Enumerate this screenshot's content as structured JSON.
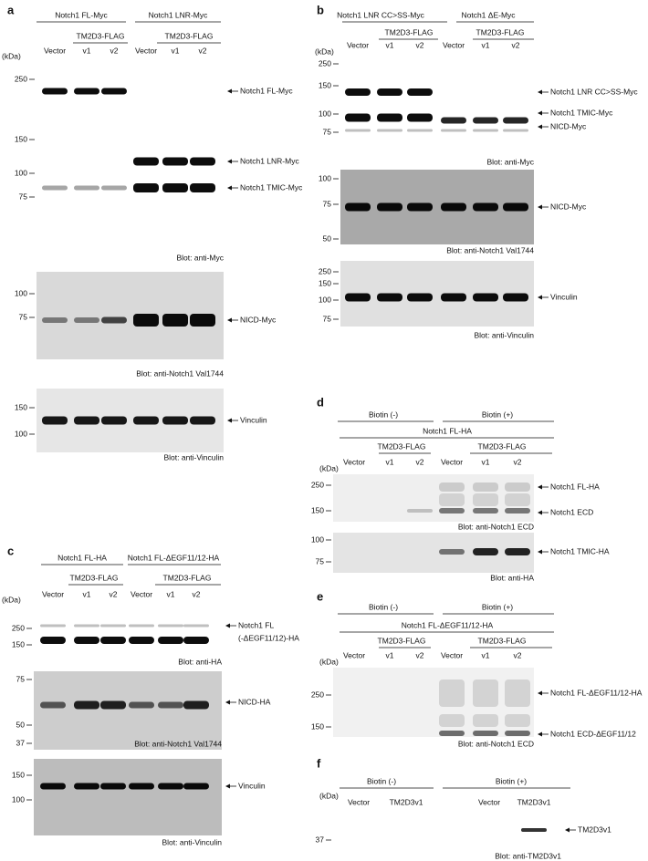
{
  "panels": [
    {
      "letter": "a",
      "headers": [
        [
          "Notch1 FL-Myc",
          "Notch1 LNR-Myc"
        ],
        [
          "TM2D3-FLAG",
          "TM2D3-FLAG"
        ]
      ],
      "lanes": [
        "Vector",
        "v1",
        "v2",
        "Vector",
        "v1",
        "v2"
      ],
      "kda": "(kDa)",
      "blots": [
        {
          "markers": [
            250,
            150,
            100,
            75
          ],
          "bands": [
            "Notch1 FL-Myc",
            "Notch1 LNR-Myc",
            "Notch1 TMIC-Myc"
          ],
          "caption": "Blot: anti-Myc"
        },
        {
          "markers": [
            100,
            75
          ],
          "bands": [
            "NICD-Myc"
          ],
          "caption": "Blot: anti-Notch1 Val1744"
        },
        {
          "markers": [
            150,
            100
          ],
          "bands": [
            "Vinculin"
          ],
          "caption": "Blot: anti-Vinculin"
        }
      ]
    },
    {
      "letter": "b",
      "headers": [
        [
          "Notch1 LNR CC>SS-Myc",
          "Notch1 ΔE-Myc"
        ],
        [
          "TM2D3-FLAG",
          "TM2D3-FLAG"
        ]
      ],
      "lanes": [
        "Vector",
        "v1",
        "v2",
        "Vector",
        "v1",
        "v2"
      ],
      "kda": "(kDa)",
      "blots": [
        {
          "markers": [
            250,
            150,
            100,
            75
          ],
          "bands": [
            "Notch1 LNR CC>SS-Myc",
            "Notch1 TMIC-Myc",
            "NICD-Myc"
          ],
          "caption": "Blot: anti-Myc"
        },
        {
          "markers": [
            100,
            75,
            50
          ],
          "bands": [
            "NICD-Myc"
          ],
          "caption": "Blot: anti-Notch1 Val1744"
        },
        {
          "markers": [
            250,
            150,
            100,
            75
          ],
          "bands": [
            "Vinculin"
          ],
          "caption": "Blot: anti-Vinculin"
        }
      ]
    },
    {
      "letter": "c",
      "headers": [
        [
          "Notch1 FL-HA",
          "Notch1 FL-ΔEGF11/12-HA"
        ],
        [
          "TM2D3-FLAG",
          "TM2D3-FLAG"
        ]
      ],
      "lanes": [
        "Vector",
        "v1",
        "v2",
        "Vector",
        "v1",
        "v2"
      ],
      "kda": "(kDa)",
      "blots": [
        {
          "markers": [
            250,
            150
          ],
          "bands": [
            "Notch1 FL",
            "(-ΔEGF11/12)-HA"
          ],
          "caption": "Blot: anti-HA"
        },
        {
          "markers": [
            75,
            50,
            37
          ],
          "bands": [
            "NICD-HA"
          ],
          "caption": "Blot: anti-Notch1 Val1744"
        },
        {
          "markers": [
            150,
            100
          ],
          "bands": [
            "Vinculin"
          ],
          "caption": "Blot: anti-Vinculin"
        }
      ]
    },
    {
      "letter": "d",
      "headers": [
        [
          "Biotin (-)",
          "Biotin (+)"
        ],
        [
          "Notch1 FL-HA"
        ],
        [
          "TM2D3-FLAG",
          "TM2D3-FLAG"
        ]
      ],
      "lanes": [
        "Vector",
        "v1",
        "v2",
        "Vector",
        "v1",
        "v2"
      ],
      "kda": "(kDa)",
      "blots": [
        {
          "markers": [
            250,
            150
          ],
          "bands": [
            "Notch1 FL-HA",
            "Notch1 ECD"
          ],
          "caption": "Blot: anti-Notch1 ECD"
        },
        {
          "markers": [
            100,
            75
          ],
          "bands": [
            "Notch1 TMIC-HA"
          ],
          "caption": "Blot: anti-HA"
        }
      ]
    },
    {
      "letter": "e",
      "headers": [
        [
          "Biotin (-)",
          "Biotin (+)"
        ],
        [
          "Notch1 FL-ΔEGF11/12-HA"
        ],
        [
          "TM2D3-FLAG",
          "TM2D3-FLAG"
        ]
      ],
      "lanes": [
        "Vector",
        "v1",
        "v2",
        "Vector",
        "v1",
        "v2"
      ],
      "kda": "(kDa)",
      "blots": [
        {
          "markers": [
            250,
            150
          ],
          "bands": [
            "Notch1 FL-ΔEGF11/12-HA",
            "Notch1 ECD-ΔEGF11/12"
          ],
          "caption": "Blot: anti-Notch1 ECD"
        }
      ]
    },
    {
      "letter": "f",
      "headers": [
        [
          "Biotin (-)",
          "Biotin (+)"
        ]
      ],
      "lanes": [
        "Vector",
        "TM2D3v1",
        "Vector",
        "TM2D3v1"
      ],
      "kda": "(kDa)",
      "blots": [
        {
          "markers": [
            37
          ],
          "bands": [
            "TM2D3v1"
          ],
          "caption": "Blot: anti-TM2D3v1"
        }
      ]
    }
  ]
}
